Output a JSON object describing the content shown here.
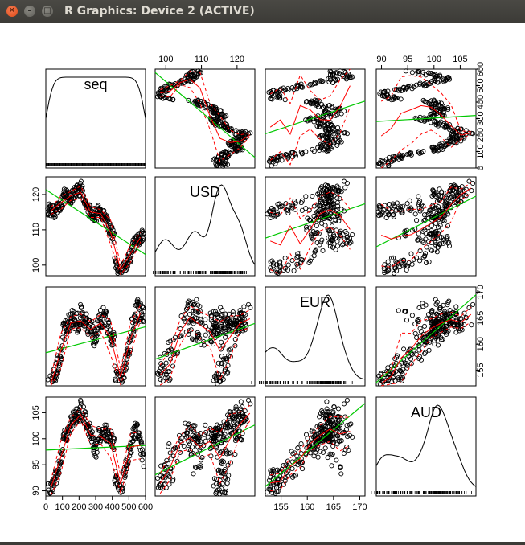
{
  "window": {
    "title": "R Graphics: Device 2 (ACTIVE)",
    "buttons": {
      "close_icon": "close-icon",
      "minimize_icon": "minimize-icon",
      "maximize_icon": "maximize-icon"
    }
  },
  "colors": {
    "points": "#000000",
    "smooth": "#ff0000",
    "spread": "#ff0000",
    "linear_fit": "#00c800",
    "density": "#000000",
    "panel_border": "#000000",
    "titlebar": "#3c3b37",
    "close": "#df4a16"
  },
  "chart_data": {
    "type": "scatter",
    "subtype": "scatterplot-matrix",
    "variables": [
      "seq",
      "USD",
      "EUR",
      "AUD"
    ],
    "diagonal": "density with rug",
    "upper_and_lower": "scatter with linear fit (green), loess smooth (red), spread (red dashed)",
    "ranges": {
      "seq": [
        0,
        600
      ],
      "USD": [
        97,
        125
      ],
      "EUR": [
        152,
        171
      ],
      "AUD": [
        89,
        108
      ]
    },
    "ticks": {
      "seq": [
        "0",
        "100",
        "200",
        "300",
        "400",
        "500",
        "600"
      ],
      "USD": [
        "100",
        "110",
        "120"
      ],
      "EUR": [
        "155",
        "160",
        "165",
        "170"
      ],
      "AUD": [
        "90",
        "95",
        "100",
        "105"
      ]
    },
    "series_approx": {
      "seq": [
        0,
        50,
        100,
        150,
        200,
        250,
        300,
        350,
        400,
        450,
        500,
        550,
        600
      ],
      "USD": [
        119,
        118,
        121,
        120,
        123,
        115,
        113,
        111,
        106,
        100,
        105,
        108,
        110
      ],
      "EUR": [
        154,
        157,
        163,
        166,
        165,
        163,
        160,
        162,
        158,
        156,
        162,
        168,
        166
      ],
      "AUD": [
        92,
        94,
        100,
        104,
        106,
        102,
        97,
        99,
        97,
        92,
        100,
        103,
        95
      ]
    },
    "linear_fit_approx": {
      "USD~seq": [
        122,
        -0.03
      ],
      "EUR~seq": [
        159,
        0.007
      ],
      "AUD~seq": [
        98,
        0.003
      ],
      "EUR~USD": [
        155,
        0.05
      ],
      "AUD~USD": [
        88,
        0.09
      ],
      "AUD~EUR": [
        -33,
        0.82
      ]
    },
    "grid": false,
    "legend": "none"
  }
}
